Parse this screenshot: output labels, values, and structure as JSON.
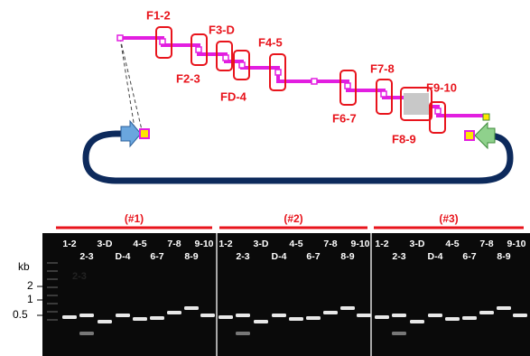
{
  "diagram": {
    "fragments": [
      {
        "label": "F1-2"
      },
      {
        "label": "F2-3"
      },
      {
        "label": "F3-D"
      },
      {
        "label": "FD-4"
      },
      {
        "label": "F4-5"
      },
      {
        "label": "F6-7"
      },
      {
        "label": "F7-8"
      },
      {
        "label": "F8-9"
      },
      {
        "label": "F9-10"
      }
    ]
  },
  "gel": {
    "unit": "kb",
    "size_markers": [
      "2",
      "1",
      "0.5"
    ],
    "ladder_note": "2-3",
    "panels": [
      {
        "label": "(#1)",
        "lanes_top": [
          "1-2",
          "3-D",
          "4-5",
          "7-8",
          "9-10"
        ],
        "lanes_bottom": [
          "2-3",
          "D-4",
          "6-7",
          "8-9"
        ]
      },
      {
        "label": "(#2)",
        "lanes_top": [
          "1-2",
          "3-D",
          "4-5",
          "7-8",
          "9-10"
        ],
        "lanes_bottom": [
          "2-3",
          "D-4",
          "6-7",
          "8-9"
        ]
      },
      {
        "label": "(#3)",
        "lanes_top": [
          "1-2",
          "3-D",
          "4-5",
          "7-8",
          "9-10"
        ],
        "lanes_bottom": [
          "2-3",
          "D-4",
          "6-7",
          "8-9"
        ]
      }
    ]
  }
}
